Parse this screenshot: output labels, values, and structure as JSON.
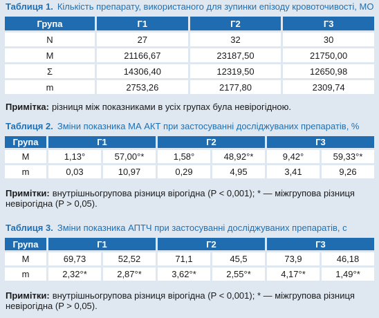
{
  "table1": {
    "label": "Таблиця 1.",
    "caption": "Кількість препарату, використаного для зупинки епізоду кровоточивості, МО",
    "header": [
      "Група",
      "Г1",
      "Г2",
      "Г3"
    ],
    "rows": [
      [
        "N",
        "27",
        "32",
        "30"
      ],
      [
        "M",
        "21166,67",
        "23187,50",
        "21750,00"
      ],
      [
        "Σ",
        "14306,40",
        "12319,50",
        "12650,98"
      ],
      [
        "m",
        "2753,26",
        "2177,80",
        "2309,74"
      ]
    ],
    "note_label": "Примітка:",
    "note": "різниця між показниками в усіх групах була невірогідною."
  },
  "table2": {
    "label": "Таблиця 2.",
    "caption": "Зміни показника МА АКТ при застосуванні досліджуваних препаратів, %",
    "header": [
      "Група",
      "Г1",
      "Г2",
      "Г3"
    ],
    "rows": [
      [
        "M",
        "1,13°",
        "57,00°*",
        "1,58°",
        "48,92°*",
        "9,42°",
        "59,33°*"
      ],
      [
        "m",
        "0,03",
        "10,97",
        "0,29",
        "4,95",
        "3,41",
        "9,26"
      ]
    ],
    "note_label": "Примітки:",
    "note": "внутрішньогрупова різниця вірогідна (P < 0,001); * — міжгрупова різниця невірогідна (P > 0,05)."
  },
  "table3": {
    "label": "Таблиця 3.",
    "caption": "Зміни показника АПТЧ при застосуванні досліджуваних препаратів, с",
    "header": [
      "Група",
      "Г1",
      "Г2",
      "Г3"
    ],
    "rows": [
      [
        "M",
        "69,73",
        "52,52",
        "71,1",
        "45,5",
        "73,9",
        "46,18"
      ],
      [
        "m",
        "2,32°*",
        "2,87°*",
        "3,62°*",
        "2,55°*",
        "4,17°*",
        "1,49°*"
      ]
    ],
    "note_label": "Примітки:",
    "note": "внутрішньогрупова різниця вірогідна (P < 0,001); * — міжгрупова різниця невірогідна (P > 0,05)."
  }
}
